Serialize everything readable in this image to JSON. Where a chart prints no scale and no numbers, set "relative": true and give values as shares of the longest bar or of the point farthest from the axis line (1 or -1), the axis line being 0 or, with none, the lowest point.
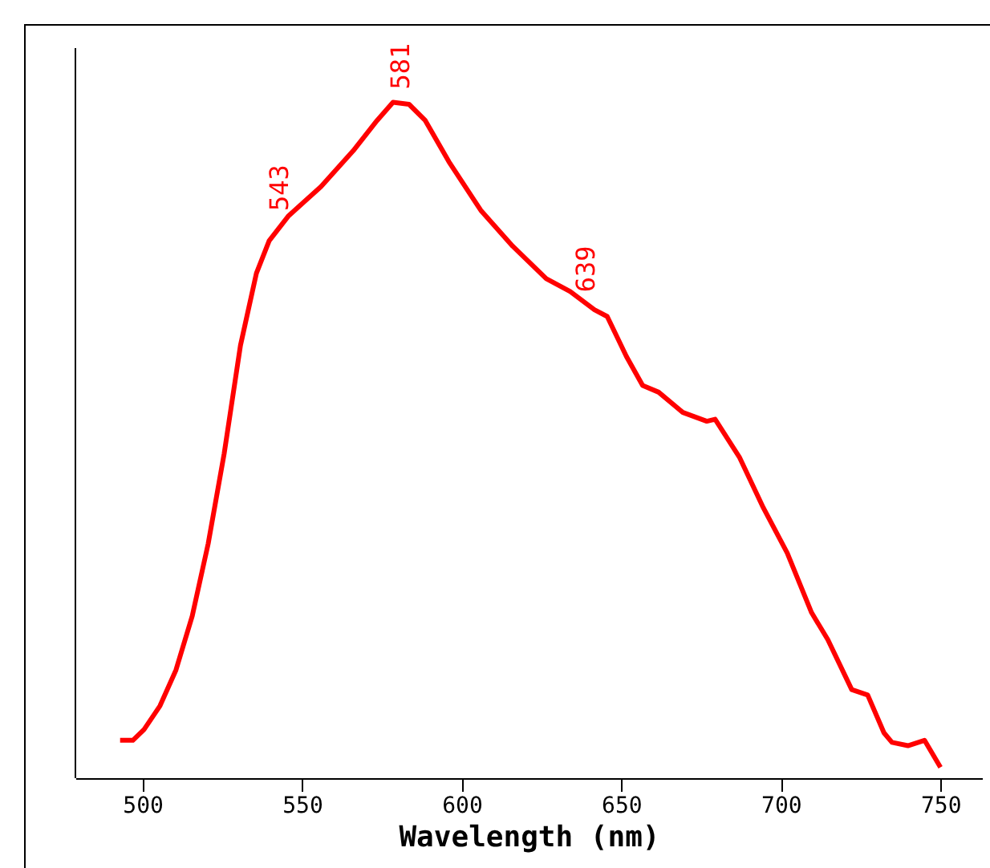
{
  "chart_data": {
    "type": "line",
    "xlabel": "Wavelength (nm)",
    "relative": true,
    "xlim": [
      479,
      763
    ],
    "xticks": [
      500,
      550,
      600,
      650,
      700,
      750
    ],
    "grid": false,
    "marker": "none",
    "line_style": "solid",
    "series": [
      {
        "color": "#ff0000",
        "x": [
          493,
          497,
          500.5,
          505.5,
          510.5,
          515.6,
          520.6,
          525.6,
          530.7,
          535.7,
          539.7,
          545.8,
          555.9,
          566,
          573.5,
          578.5,
          583.5,
          588.6,
          596,
          606,
          616,
          626.5,
          634,
          641.6,
          645.6,
          651.6,
          656.7,
          661.7,
          669.3,
          676.8,
          679.4,
          687,
          694.5,
          702,
          709.6,
          714.7,
          722.2,
          727.2,
          732.3,
          734.8,
          739.8,
          745,
          750
        ],
        "values": [
          0.056,
          0.056,
          0.072,
          0.107,
          0.16,
          0.24,
          0.347,
          0.48,
          0.64,
          0.747,
          0.795,
          0.832,
          0.875,
          0.928,
          0.973,
          1,
          0.997,
          0.973,
          0.912,
          0.84,
          0.787,
          0.739,
          0.72,
          0.693,
          0.683,
          0.624,
          0.581,
          0.571,
          0.541,
          0.528,
          0.531,
          0.475,
          0.4,
          0.333,
          0.245,
          0.205,
          0.131,
          0.123,
          0.067,
          0.053,
          0.048,
          0.056,
          0.016
        ]
      }
    ],
    "annotations": [
      {
        "text": "543",
        "x": 543,
        "y": 0.82
      },
      {
        "text": "581",
        "x": 581,
        "y": 1
      },
      {
        "text": "639",
        "x": 639,
        "y": 0.7
      }
    ]
  }
}
